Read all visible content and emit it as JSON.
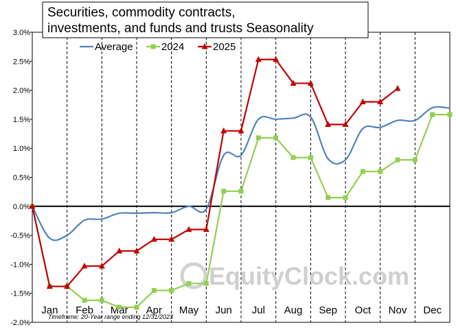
{
  "chart_data": {
    "type": "line",
    "title_lines": [
      "Securities, commodity contracts,",
      "investments, and funds and trusts Seasonality"
    ],
    "categories": [
      "Jan",
      "Feb",
      "Mar",
      "Apr",
      "May",
      "Jun",
      "Jul",
      "Aug",
      "Sep",
      "Oct",
      "Nov",
      "Dec"
    ],
    "y_ticks": [
      "3.0%",
      "2.5%",
      "2.0%",
      "1.5%",
      "1.0%",
      "0.5%",
      "0.0%",
      "-0.5%",
      "-1.0%",
      "-1.5%",
      "-2.0%"
    ],
    "ylim": [
      -2.0,
      3.0
    ],
    "xlim": [
      0,
      12
    ],
    "grid": "vertical-dashed",
    "legend_position": "top",
    "series": [
      {
        "name": "Average",
        "color": "#4f81bd",
        "marker": "none",
        "smooth": true,
        "points": [
          [
            0,
            0.0
          ],
          [
            0.5,
            -0.55
          ],
          [
            1.0,
            -0.5
          ],
          [
            1.5,
            -0.24
          ],
          [
            2.0,
            -0.22
          ],
          [
            2.5,
            -0.12
          ],
          [
            3.0,
            -0.12
          ],
          [
            3.5,
            -0.11
          ],
          [
            4.0,
            -0.11
          ],
          [
            4.5,
            0.0
          ],
          [
            5.0,
            -0.05
          ],
          [
            5.5,
            0.88
          ],
          [
            6.0,
            0.88
          ],
          [
            6.5,
            1.5
          ],
          [
            7.0,
            1.5
          ],
          [
            7.5,
            1.52
          ],
          [
            8.0,
            1.54
          ],
          [
            8.5,
            0.82
          ],
          [
            9.0,
            0.8
          ],
          [
            9.5,
            1.34
          ],
          [
            10.0,
            1.36
          ],
          [
            10.5,
            1.48
          ],
          [
            11.0,
            1.48
          ],
          [
            11.5,
            1.7
          ],
          [
            12.0,
            1.69
          ]
        ]
      },
      {
        "name": "2024",
        "color": "#92d050",
        "marker": "square",
        "smooth": false,
        "points": [
          [
            0,
            0.0
          ],
          [
            0.5,
            -1.38
          ],
          [
            1.0,
            -1.38
          ],
          [
            1.5,
            -1.62
          ],
          [
            2.0,
            -1.62
          ],
          [
            2.5,
            -1.74
          ],
          [
            3.0,
            -1.74
          ],
          [
            3.5,
            -1.45
          ],
          [
            4.0,
            -1.45
          ],
          [
            4.5,
            -1.33
          ],
          [
            5.0,
            -1.33
          ],
          [
            5.5,
            0.26
          ],
          [
            6.0,
            0.26
          ],
          [
            6.5,
            1.18
          ],
          [
            7.0,
            1.18
          ],
          [
            7.5,
            0.84
          ],
          [
            8.0,
            0.84
          ],
          [
            8.5,
            0.15
          ],
          [
            9.0,
            0.15
          ],
          [
            9.5,
            0.6
          ],
          [
            10.0,
            0.6
          ],
          [
            10.5,
            0.8
          ],
          [
            11.0,
            0.8
          ],
          [
            11.5,
            1.58
          ],
          [
            12.0,
            1.58
          ]
        ]
      },
      {
        "name": "2025",
        "color": "#c00000",
        "marker": "triangle",
        "smooth": false,
        "points": [
          [
            0,
            0.0
          ],
          [
            0.5,
            -1.38
          ],
          [
            1.0,
            -1.38
          ],
          [
            1.5,
            -1.03
          ],
          [
            2.0,
            -1.03
          ],
          [
            2.5,
            -0.77
          ],
          [
            3.0,
            -0.77
          ],
          [
            3.5,
            -0.57
          ],
          [
            4.0,
            -0.57
          ],
          [
            4.5,
            -0.4
          ],
          [
            5.0,
            -0.4
          ],
          [
            5.5,
            1.3
          ],
          [
            6.0,
            1.3
          ],
          [
            6.5,
            2.53
          ],
          [
            7.0,
            2.53
          ],
          [
            7.5,
            2.12
          ],
          [
            8.0,
            2.12
          ],
          [
            8.5,
            1.41
          ],
          [
            9.0,
            1.41
          ],
          [
            9.5,
            1.8
          ],
          [
            10.0,
            1.8
          ],
          [
            10.5,
            2.03
          ]
        ]
      }
    ]
  },
  "footnote": "Timeframe: 20-Year range ending 12/31/2023",
  "watermark": "EquityClock.com"
}
